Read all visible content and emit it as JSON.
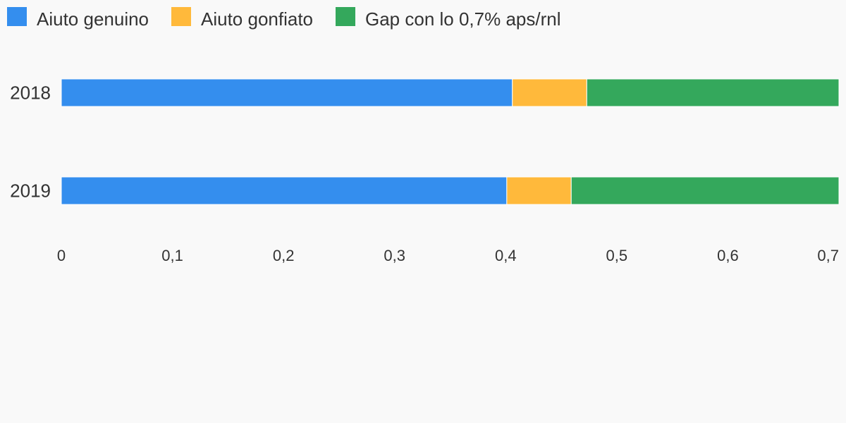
{
  "chart_data": {
    "type": "bar",
    "orientation": "horizontal",
    "stacked": true,
    "categories": [
      "2018",
      "2019"
    ],
    "series": [
      {
        "name": "Aiuto genuino",
        "color": "#348eee",
        "values": [
          0.406,
          0.401
        ]
      },
      {
        "name": "Aiuto gonfiato",
        "color": "#ffb93b",
        "values": [
          0.067,
          0.058
        ]
      },
      {
        "name": "Gap con lo 0,7% aps/rnl",
        "color": "#34a85c",
        "values": [
          0.227,
          0.241
        ]
      }
    ],
    "xlim": [
      0,
      0.7
    ],
    "x_ticks": [
      0,
      0.1,
      0.2,
      0.3,
      0.4,
      0.5,
      0.6,
      0.7
    ],
    "x_tick_labels": [
      "0",
      "0,1",
      "0,2",
      "0,3",
      "0,4",
      "0,5",
      "0,6",
      "0,7"
    ],
    "legend_position": "top-left",
    "grid": false
  }
}
